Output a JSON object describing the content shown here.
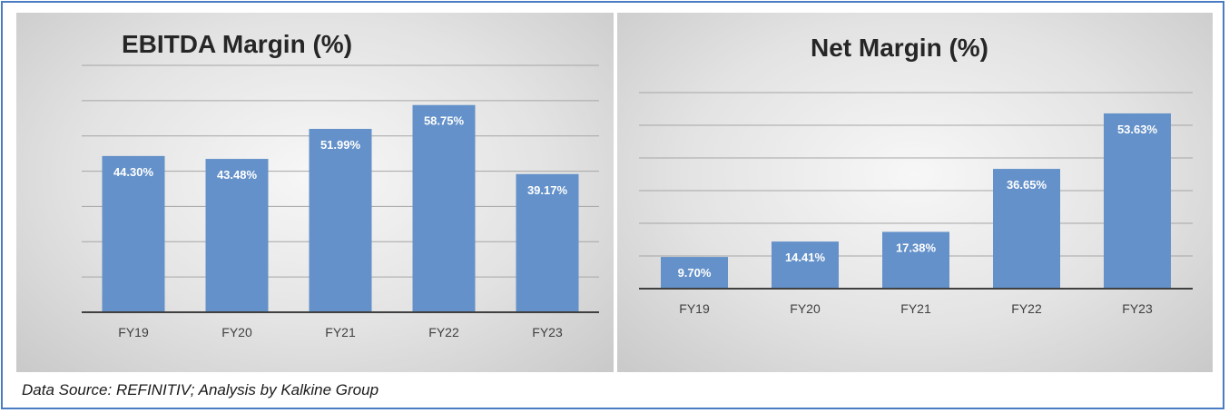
{
  "chart_data": [
    {
      "type": "bar",
      "title": "EBITDA Margin (%)",
      "categories": [
        "FY19",
        "FY20",
        "FY21",
        "FY22",
        "FY23"
      ],
      "values": [
        44.3,
        43.48,
        51.99,
        58.75,
        39.17
      ],
      "labels": [
        "44.30%",
        "43.48%",
        "51.99%",
        "58.75%",
        "39.17%"
      ],
      "xlabel": "",
      "ylabel": "",
      "ylim": [
        0,
        70
      ],
      "grid": true,
      "color": "#6491c9"
    },
    {
      "type": "bar",
      "title": "Net Margin (%)",
      "categories": [
        "FY19",
        "FY20",
        "FY21",
        "FY22",
        "FY23"
      ],
      "values": [
        9.7,
        14.41,
        17.38,
        36.65,
        53.63
      ],
      "labels": [
        "9.70%",
        "14.41%",
        "17.38%",
        "36.65%",
        "53.63%"
      ],
      "xlabel": "",
      "ylabel": "",
      "ylim": [
        0,
        60
      ],
      "grid": true,
      "color": "#6491c9"
    }
  ],
  "footer": {
    "source": "Data Source: REFINITIV; Analysis by Kalkine Group"
  },
  "colors": {
    "frame_border": "#4a7cc4",
    "bar": "#6491c9",
    "grid": "#a6a6a6",
    "axis": "#404040"
  }
}
